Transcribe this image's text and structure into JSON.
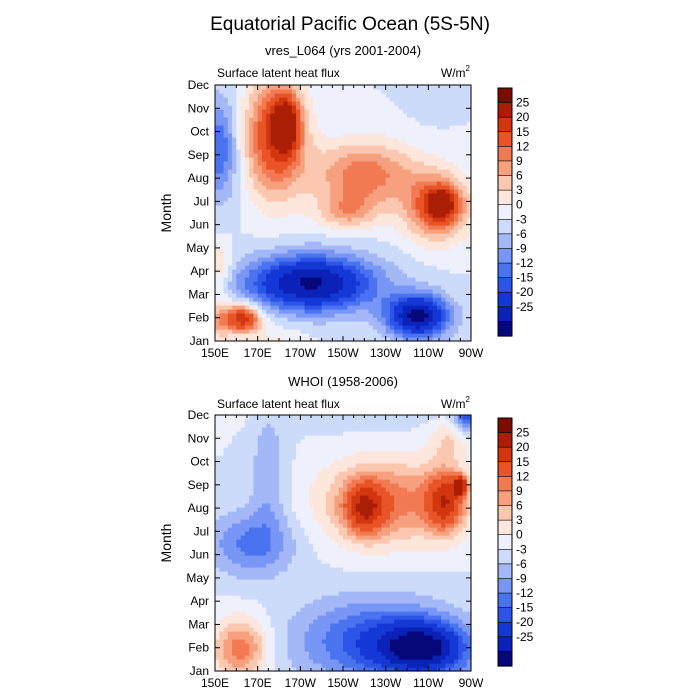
{
  "chart_data": {
    "type": "heatmap",
    "title": "Equatorial Pacific Ocean (5S-5N)",
    "colorbar": {
      "levels": [
        -25,
        -20,
        -15,
        -12,
        -9,
        -6,
        -3,
        0,
        3,
        6,
        9,
        12,
        15,
        20,
        25
      ],
      "colors": [
        "#06087a",
        "#0a22b8",
        "#1438d6",
        "#2c55e8",
        "#4a73f0",
        "#7896f5",
        "#a4b8f7",
        "#cddbfb",
        "#eef1fc",
        "#fde7dc",
        "#fbc7ae",
        "#f7a07e",
        "#f27a52",
        "#e95426",
        "#d2360f",
        "#a91e05",
        "#7a0c00"
      ],
      "labels": [
        "25",
        "20",
        "15",
        "12",
        "9",
        "6",
        "3",
        "0",
        "-3",
        "-6",
        "-9",
        "-12",
        "-15",
        "-20",
        "-25"
      ]
    },
    "panels": [
      {
        "title": "vres_L064 (yrs 2001-2004)",
        "left_string": "Surface latent heat flux",
        "right_string": "W/m",
        "right_superscript": "2",
        "ylabel": "Month",
        "xticks": [
          "150E",
          "170E",
          "170W",
          "150W",
          "130W",
          "110W",
          "90W"
        ],
        "yticks": [
          "Jan",
          "Feb",
          "Mar",
          "Apr",
          "May",
          "Jun",
          "Jul",
          "Aug",
          "Sep",
          "Oct",
          "Nov",
          "Dec"
        ],
        "xrange": [
          150,
          270
        ],
        "features": [
          {
            "v": 20,
            "x": 178,
            "m": 8.8,
            "rx": 14,
            "rm": 2.5
          },
          {
            "v": 25,
            "x": 183,
            "m": 9.3,
            "rx": 6,
            "rm": 1.1
          },
          {
            "v": 18,
            "x": 254,
            "m": 5.8,
            "rx": 15,
            "rm": 1.4
          },
          {
            "v": 24,
            "x": 256,
            "m": 5.9,
            "rx": 6,
            "rm": 0.6
          },
          {
            "v": 14,
            "x": 220,
            "m": 7.2,
            "rx": 24,
            "rm": 1.4
          },
          {
            "v": -26,
            "x": 195,
            "m": 2.5,
            "rx": 30,
            "rm": 1.2
          },
          {
            "v": -27,
            "x": 245,
            "m": 1.1,
            "rx": 14,
            "rm": 0.9
          },
          {
            "v": -12,
            "x": 152,
            "m": 8.3,
            "rx": 9,
            "rm": 2.2
          },
          {
            "v": 24,
            "x": 163,
            "m": 1.0,
            "rx": 8,
            "rm": 0.6
          },
          {
            "v": 9,
            "x": 152,
            "m": 0.9,
            "rx": 6,
            "rm": 1.0
          },
          {
            "v": 7,
            "x": 152,
            "m": 3.3,
            "rx": 6,
            "rm": 1.0
          },
          {
            "v": 9,
            "x": 212,
            "m": 5.6,
            "rx": 14,
            "rm": 0.8
          },
          {
            "v": -3,
            "x": 252,
            "m": 10.7,
            "rx": 10,
            "rm": 1.0
          }
        ]
      },
      {
        "title": "WHOI (1958-2006)",
        "left_string": "Surface latent heat flux",
        "right_string": "W/m",
        "right_superscript": "2",
        "ylabel": "Month",
        "xticks": [
          "150E",
          "170E",
          "170W",
          "150W",
          "130W",
          "110W",
          "90W"
        ],
        "yticks": [
          "Jan",
          "Feb",
          "Mar",
          "Apr",
          "May",
          "Jun",
          "Jul",
          "Aug",
          "Sep",
          "Oct",
          "Nov",
          "Dec"
        ],
        "xrange": [
          150,
          270
        ],
        "features": [
          {
            "v": 14,
            "x": 230,
            "m": 7.3,
            "rx": 30,
            "rm": 1.8
          },
          {
            "v": 20,
            "x": 258,
            "m": 7.3,
            "rx": 9,
            "rm": 1.3
          },
          {
            "v": 26,
            "x": 265,
            "m": 8.0,
            "rx": 3,
            "rm": 0.4
          },
          {
            "v": 16,
            "x": 220,
            "m": 7.0,
            "rx": 9,
            "rm": 1.1
          },
          {
            "v": -14,
            "x": 225,
            "m": 1.3,
            "rx": 36,
            "rm": 1.8
          },
          {
            "v": -22,
            "x": 248,
            "m": 1.0,
            "rx": 20,
            "rm": 1.1
          },
          {
            "v": -10,
            "x": 167,
            "m": 5.5,
            "rx": 20,
            "rm": 1.4
          },
          {
            "v": -14,
            "x": 268,
            "m": 11.0,
            "rx": 6,
            "rm": 0.8
          },
          {
            "v": 14,
            "x": 162,
            "m": 1.0,
            "rx": 13,
            "rm": 1.3
          },
          {
            "v": -6,
            "x": 175,
            "m": 8.5,
            "rx": 8,
            "rm": 2.5
          },
          {
            "v": 6,
            "x": 260,
            "m": 10.0,
            "rx": 10,
            "rm": 1.0
          }
        ]
      }
    ]
  }
}
